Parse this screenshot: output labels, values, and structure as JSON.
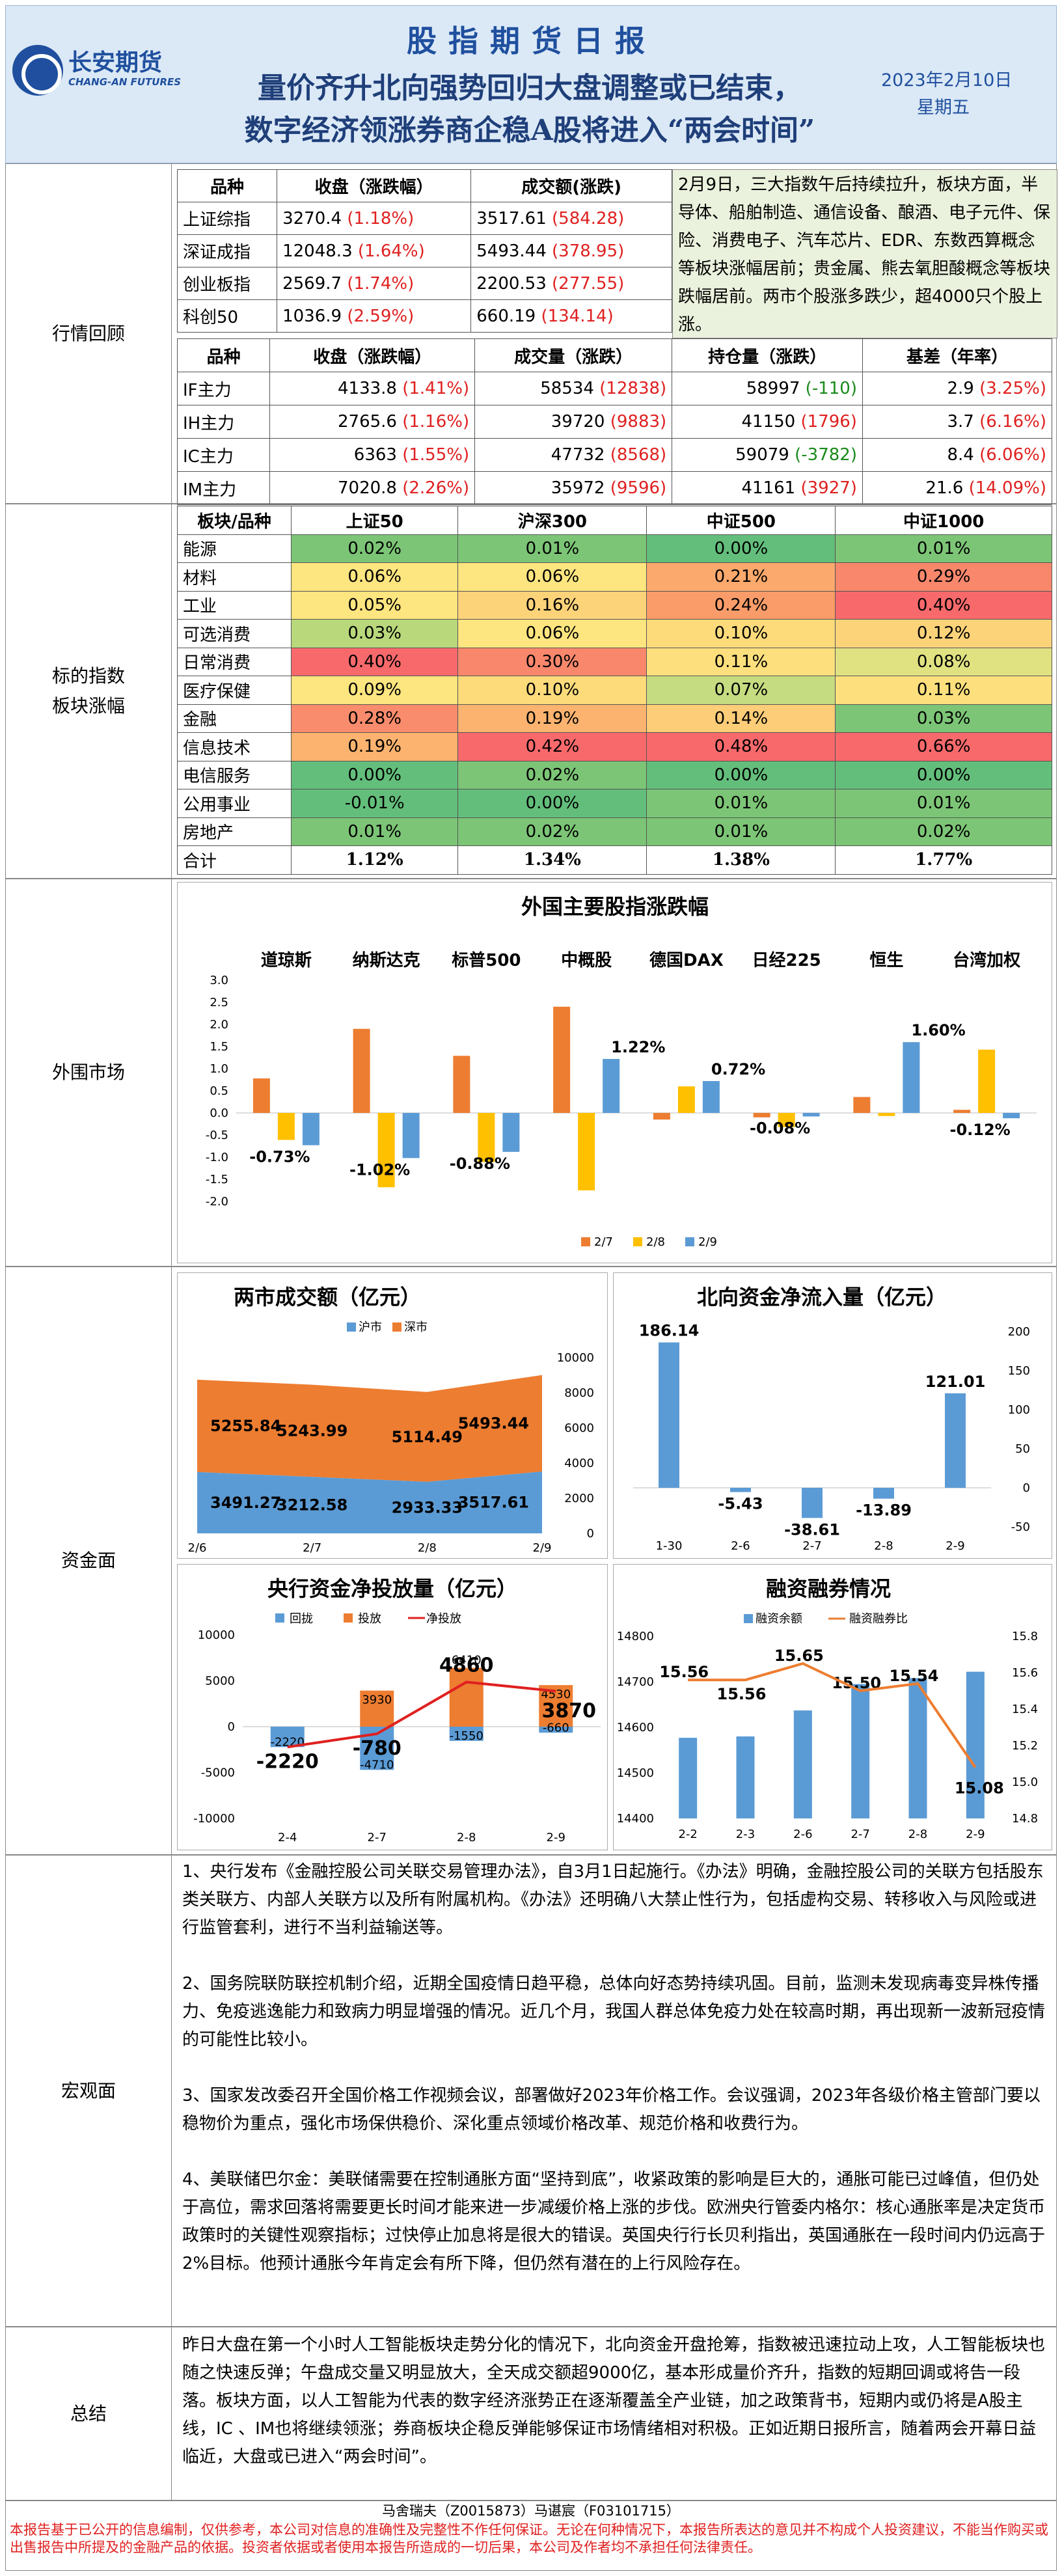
{
  "header": {
    "logo_cn": "长安期货",
    "logo_en": "CHANG-AN FUTURES",
    "title": "股指期货日报",
    "headline1": "量价齐升北向强势回归大盘调整或已结束，",
    "headline2": "数字经济领涨券商企稳A股将进入“两会时间”",
    "date": "2023年2月10日",
    "weekday": "星期五"
  },
  "market": {
    "label": "行情回顾",
    "idx_headers": [
      "品种",
      "收盘（涨跌幅）",
      "成交额(涨跌)"
    ],
    "indices": [
      {
        "name": "上证综指",
        "close": "3270.4",
        "chg": "(1.18%)",
        "amt": "3517.61",
        "amt_chg": "(584.28)"
      },
      {
        "name": "深证成指",
        "close": "12048.3",
        "chg": "(1.64%)",
        "amt": "5493.44",
        "amt_chg": "(378.95)"
      },
      {
        "name": "创业板指",
        "close": "2569.7",
        "chg": "(1.74%)",
        "amt": "2200.53",
        "amt_chg": "(277.55)"
      },
      {
        "name": "科创50",
        "close": "1036.9",
        "chg": "(2.59%)",
        "amt": "660.19",
        "amt_chg": "(134.14)"
      }
    ],
    "comment": "2月9日，三大指数午后持续拉升，板块方面，半导体、船舶制造、通信设备、酿酒、电子元件、保险、消费电子、汽车芯片、EDR、东数西算概念等板块涨幅居前；贵金属、熊去氧胆酸概念等板块跌幅居前。两市个股涨多跌少，超4000只个股上涨。",
    "fut_headers": [
      "品种",
      "收盘（涨跌幅）",
      "成交量（涨跌）",
      "持仓量（涨跌）",
      "基差（年率）"
    ],
    "futures": [
      {
        "name": "IF主力",
        "close": "4133.8",
        "chg": "(1.41%)",
        "vol": "58534",
        "vol_chg": "(12838)",
        "oi": "58997",
        "oi_chg": "(-110)",
        "oi_up": false,
        "basis": "2.9",
        "rate": "(3.25%)"
      },
      {
        "name": "IH主力",
        "close": "2765.6",
        "chg": "(1.16%)",
        "vol": "39720",
        "vol_chg": "(9883)",
        "oi": "41150",
        "oi_chg": "(1796)",
        "oi_up": true,
        "basis": "3.7",
        "rate": "(6.16%)"
      },
      {
        "name": "IC主力",
        "close": "6363",
        "chg": "(1.55%)",
        "vol": "47732",
        "vol_chg": "(8568)",
        "oi": "59079",
        "oi_chg": "(-3782)",
        "oi_up": false,
        "basis": "8.4",
        "rate": "(6.06%)"
      },
      {
        "name": "IM主力",
        "close": "7020.8",
        "chg": "(2.26%)",
        "vol": "35972",
        "vol_chg": "(9596)",
        "oi": "41161",
        "oi_chg": "(3927)",
        "oi_up": true,
        "basis": "21.6",
        "rate": "(14.09%)"
      }
    ]
  },
  "sector": {
    "label1": "标的指数",
    "label2": "板块涨幅",
    "headers": [
      "板块/品种",
      "上证50",
      "沪深300",
      "中证500",
      "中证1000"
    ],
    "rows": [
      {
        "name": "能源",
        "v": [
          "0.02%",
          "0.01%",
          "0.00%",
          "0.01%"
        ],
        "c": [
          "#7cc576",
          "#7cc576",
          "#63be7b",
          "#7cc576"
        ]
      },
      {
        "name": "材料",
        "v": [
          "0.06%",
          "0.06%",
          "0.21%",
          "0.29%"
        ],
        "c": [
          "#fde57f",
          "#fde57f",
          "#fba96c",
          "#f8876c"
        ]
      },
      {
        "name": "工业",
        "v": [
          "0.05%",
          "0.16%",
          "0.24%",
          "0.40%"
        ],
        "c": [
          "#fde57f",
          "#fdd37a",
          "#fa9c6a",
          "#f8696b"
        ]
      },
      {
        "name": "可选消费",
        "v": [
          "0.03%",
          "0.06%",
          "0.10%",
          "0.12%"
        ],
        "c": [
          "#b9d87c",
          "#fde57f",
          "#fddb7b",
          "#fdd37a"
        ]
      },
      {
        "name": "日常消费",
        "v": [
          "0.40%",
          "0.30%",
          "0.11%",
          "0.08%"
        ],
        "c": [
          "#f8696b",
          "#f8876c",
          "#fde07d",
          "#e0e282"
        ]
      },
      {
        "name": "医疗保健",
        "v": [
          "0.09%",
          "0.10%",
          "0.07%",
          "0.11%"
        ],
        "c": [
          "#fde57f",
          "#fddb7b",
          "#c6dc80",
          "#fde07d"
        ]
      },
      {
        "name": "金融",
        "v": [
          "0.28%",
          "0.19%",
          "0.14%",
          "0.03%"
        ],
        "c": [
          "#f98c6c",
          "#fbb36f",
          "#fdcd78",
          "#7cc576"
        ]
      },
      {
        "name": "信息技术",
        "v": [
          "0.19%",
          "0.42%",
          "0.48%",
          "0.66%"
        ],
        "c": [
          "#fbb36f",
          "#f8696b",
          "#f8696b",
          "#f8696b"
        ]
      },
      {
        "name": "电信服务",
        "v": [
          "0.00%",
          "0.02%",
          "0.00%",
          "0.00%"
        ],
        "c": [
          "#63be7b",
          "#7cc576",
          "#63be7b",
          "#63be7b"
        ]
      },
      {
        "name": "公用事业",
        "v": [
          "-0.01%",
          "0.00%",
          "0.01%",
          "0.01%"
        ],
        "c": [
          "#63be7b",
          "#63be7b",
          "#7cc576",
          "#7cc576"
        ]
      },
      {
        "name": "房地产",
        "v": [
          "0.01%",
          "0.02%",
          "0.01%",
          "0.02%"
        ],
        "c": [
          "#7cc576",
          "#7cc576",
          "#7cc576",
          "#7cc576"
        ]
      }
    ],
    "total": {
      "name": "合计",
      "v": [
        "1.12%",
        "1.34%",
        "1.38%",
        "1.77%"
      ]
    }
  },
  "overseas": {
    "label": "外围市场",
    "chart": {
      "title": "外国主要股指涨跌幅"
    }
  },
  "funds": {
    "label": "资金面"
  },
  "macro": {
    "label": "宏观面",
    "paras": [
      "1、央行发布《金融控股公司关联交易管理办法》，自3月1日起施行。《办法》明确，金融控股公司的关联方包括股东类关联方、内部人关联方以及所有附属机构。《办法》还明确八大禁止性行为，包括虚构交易、转移收入与风险或进行监管套利，进行不当利益输送等。",
      "2、国务院联防联控机制介绍，近期全国疫情日趋平稳，总体向好态势持续巩固。目前，监测未发现病毒变异株传播力、免疫逃逸能力和致病力明显增强的情况。近几个月，我国人群总体免疫力处在较高时期，再出现新一波新冠疫情的可能性比较小。",
      "3、国家发改委召开全国价格工作视频会议，部署做好2023年价格工作。会议强调，2023年各级价格主管部门要以稳物价为重点，强化市场保供稳价、深化重点领域价格改革、规范价格和收费行为。",
      "4、美联储巴尔金：美联储需要在控制通胀方面“坚持到底”，收紧政策的影响是巨大的，通胀可能已过峰值，但仍处于高位，需求回落将需要更长时间才能来进一步减缓价格上涨的步伐。欧洲央行管委内格尔：核心通胀率是决定货币政策时的关键性观察指标；过快停止加息将是很大的错误。英国央行行长贝利指出，英国通胀在一段时间内仍远高于2%目标。他预计通胀今年肯定会有所下降，但仍然有潜在的上行风险存在。"
    ]
  },
  "summary": {
    "label": "总结",
    "text": "昨日大盘在第一个小时人工智能板块走势分化的情况下，北向资金开盘抢筹，指数被迅速拉动上攻，人工智能板块也随之快速反弹；午盘成交量又明显放大，全天成交额超9000亿，基本形成量价齐升，指数的短期回调或将告一段落。板块方面，以人工智能为代表的数字经济涨势正在逐渐覆盖全产业链，加之政策背书，短期内或仍将是A股主线，IC 、IM也将继续领涨；券商板块企稳反弹能够保证市场情绪相对积极。正如近期日报所言，随着两会开幕日益临近，大盘或已进入“两会时间”。"
  },
  "disclaimer": {
    "authors": "马舍瑞夫（Z0015873）马谌宸（F03101715）",
    "text": "本报告基于已公开的信息编制，仅供参考，本公司对信息的准确性及完整性不作任何保证。无论在何种情况下，本报告所表达的意见并不构成个人投资建议，不能当作购买或出售报告中所提及的金融产品的依据。投资者依据或者使用本报告所造成的一切后果，本公司及作者均不承担任何法律责任。"
  },
  "colors": {
    "s1": "#ed7d31",
    "s2": "#ffc000",
    "s3": "#5b9bd5",
    "hu": "#5b9bd5",
    "shen": "#ed7d31",
    "red": "#e02020"
  },
  "chart_data": [
    {
      "type": "bar",
      "title": "外国主要股指涨跌幅",
      "categories": [
        "道琼斯",
        "纳斯达克",
        "标普500",
        "中概股",
        "德国DAX",
        "日经225",
        "恒生",
        "台湾加权"
      ],
      "series": [
        {
          "name": "2/7",
          "values": [
            0.78,
            1.9,
            1.29,
            2.4,
            -0.15,
            -0.1,
            0.36,
            0.07
          ]
        },
        {
          "name": "2/8",
          "values": [
            -0.61,
            -1.68,
            -1.11,
            -1.75,
            0.6,
            -0.32,
            -0.07,
            1.43
          ]
        },
        {
          "name": "2/9",
          "values": [
            -0.73,
            -1.02,
            -0.88,
            1.22,
            0.72,
            -0.08,
            1.6,
            -0.12
          ]
        }
      ],
      "labels": [
        "-0.73%",
        "-1.02%",
        "-0.88%",
        "1.22%",
        "0.72%",
        "-0.08%",
        "1.60%",
        "-0.12%"
      ],
      "ylim": [
        -2.0,
        3.0
      ],
      "yticks": [
        "3.0",
        "2.5",
        "2.0",
        "1.5",
        "1.0",
        "0.5",
        "0.0",
        "-0.5",
        "-1.0",
        "-1.5",
        "-2.0"
      ]
    },
    {
      "type": "area",
      "title": "两市成交额（亿元）",
      "x": [
        "2/6",
        "2/7",
        "2/8",
        "2/9"
      ],
      "series": [
        {
          "name": "沪市",
          "values": [
            3491.27,
            3212.58,
            2933.33,
            3517.61
          ]
        },
        {
          "name": "深市",
          "values": [
            5255.84,
            5243.99,
            5114.49,
            5493.44
          ]
        }
      ],
      "ylim": [
        0,
        10000
      ],
      "yticks": [
        "10000",
        "8000",
        "6000",
        "4000",
        "2000",
        "0"
      ]
    },
    {
      "type": "bar",
      "title": "北向资金净流入量（亿元）",
      "x": [
        "1-30",
        "2-6",
        "2-7",
        "2-8",
        "2-9"
      ],
      "values": [
        186.14,
        -5.43,
        -38.61,
        -13.89,
        121.01
      ],
      "labels": [
        "186.14",
        "-5.43",
        "-38.61",
        "-13.89",
        "121.01"
      ],
      "ylim": [
        -50,
        200
      ],
      "yticks": [
        "200",
        "150",
        "100",
        "50",
        "0",
        "-50"
      ]
    },
    {
      "type": "bar",
      "title": "央行资金净投放量（亿元）",
      "x": [
        "2-4",
        "2-7",
        "2-8",
        "2-9"
      ],
      "series": [
        {
          "name": "回拢",
          "values": [
            -2220,
            -4710,
            -1550,
            -660
          ]
        },
        {
          "name": "投放",
          "values": [
            0,
            3930,
            6410,
            4530
          ]
        },
        {
          "name": "净投放",
          "values": [
            -2220,
            -780,
            4860,
            3870
          ]
        }
      ],
      "ylim": [
        -10000,
        10000
      ],
      "yticks": [
        "10000",
        "5000",
        "0",
        "-5000",
        "-10000"
      ]
    },
    {
      "type": "bar",
      "title": "融资融券情况",
      "x": [
        "2-2",
        "2-3",
        "2-6",
        "2-7",
        "2-8",
        "2-9"
      ],
      "series": [
        {
          "name": "融资余额",
          "values": [
            14577,
            14580,
            14637,
            14695,
            14708,
            14722
          ]
        },
        {
          "name": "融资融券比",
          "values": [
            15.56,
            15.56,
            15.65,
            15.5,
            15.54,
            15.08
          ]
        }
      ],
      "labels": [
        "15.56",
        "15.56",
        "15.65",
        "15.50",
        "15.54",
        "15.08"
      ],
      "ylim_left": [
        14400,
        14800
      ],
      "ylim_right": [
        14.8,
        15.8
      ]
    }
  ]
}
